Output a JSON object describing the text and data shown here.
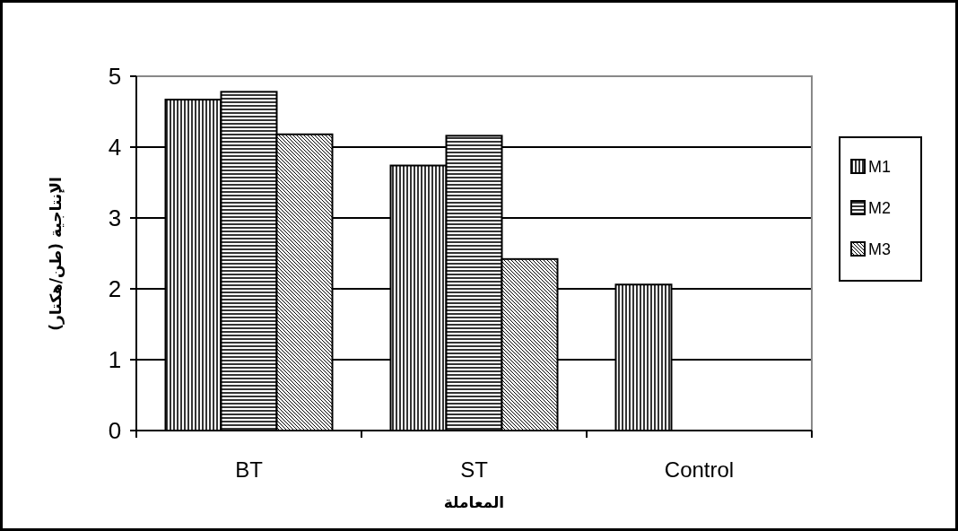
{
  "chart_data": {
    "type": "bar",
    "xlabel": "المعاملة",
    "ylabel": "الإنتاجية (طن/هكتار)",
    "categories": [
      "BT",
      "ST",
      "Control"
    ],
    "series": [
      {
        "name": "M1",
        "color": "#000000",
        "values": [
          4.67,
          3.74,
          2.06
        ]
      },
      {
        "name": "M2",
        "color": "#000000",
        "values": [
          4.78,
          4.16,
          null
        ]
      },
      {
        "name": "M3",
        "color": "#000000",
        "values": [
          4.18,
          2.42,
          null
        ]
      }
    ],
    "ylim": [
      0,
      5
    ],
    "yticks": [
      0,
      1,
      2,
      3,
      4,
      5
    ],
    "grid": "y",
    "legend": "right"
  }
}
